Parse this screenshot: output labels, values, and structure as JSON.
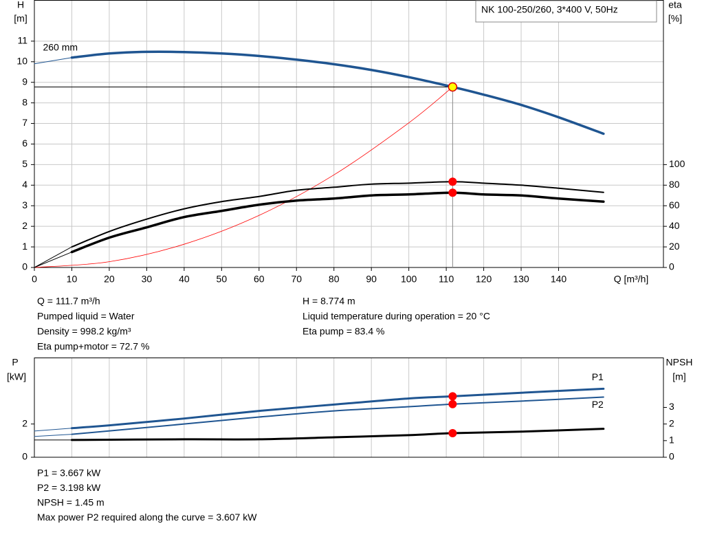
{
  "chart_data": [
    {
      "type": "line",
      "title": "NK 100-250/260, 3*400 V, 50Hz",
      "ylabel": [
        "H",
        "[m]"
      ],
      "y2label": [
        "eta",
        "[%]"
      ],
      "xlabel": "Q [m³/h]",
      "xlim": [
        0,
        168
      ],
      "xticks": [
        0,
        10,
        20,
        30,
        40,
        50,
        60,
        70,
        80,
        90,
        100,
        110,
        120,
        130,
        140
      ],
      "ylim": [
        0,
        13
      ],
      "yticks": [
        0,
        1,
        2,
        3,
        4,
        5,
        6,
        7,
        8,
        9,
        10,
        11
      ],
      "y2lim": [
        0,
        260
      ],
      "y2ticks": [
        0,
        20,
        40,
        60,
        80,
        100
      ],
      "grid": true,
      "series": [
        {
          "color": "#1f5591",
          "line_width": 1,
          "x": [
            0,
            10
          ],
          "values": [
            9.9,
            10.2
          ]
        },
        {
          "name": "260 mm",
          "label_at": "start",
          "color": "#1f5591",
          "line_width": 3.5,
          "x": [
            10,
            20,
            30,
            40,
            50,
            60,
            70,
            80,
            90,
            100,
            111.7,
            120,
            130,
            140,
            152
          ],
          "values": [
            10.2,
            10.4,
            10.48,
            10.47,
            10.4,
            10.28,
            10.1,
            9.88,
            9.6,
            9.25,
            8.774,
            8.4,
            7.9,
            7.3,
            6.5
          ]
        },
        {
          "color": "#ff0000",
          "line_width": 0.8,
          "x": [
            0,
            20,
            40,
            60,
            80,
            100,
            111.7
          ],
          "values": [
            0,
            0.28,
            1.13,
            2.53,
            4.5,
            7.03,
            8.774
          ]
        },
        {
          "color": "#000000",
          "line_width": 1,
          "axis": "y2",
          "x": [
            0,
            10
          ],
          "values": [
            0,
            20
          ]
        },
        {
          "color": "#000000",
          "line_width": 2,
          "axis": "y2",
          "x": [
            10,
            20,
            30,
            40,
            50,
            60,
            70,
            80,
            90,
            100,
            111.7,
            120,
            130,
            140,
            152
          ],
          "values": [
            20,
            35,
            47,
            57,
            64,
            69,
            75,
            78,
            81,
            82,
            83.4,
            82,
            80,
            77,
            73
          ]
        },
        {
          "color": "#000000",
          "line_width": 1,
          "axis": "y2",
          "x": [
            0,
            10
          ],
          "values": [
            0,
            15
          ]
        },
        {
          "color": "#000000",
          "line_width": 3.5,
          "axis": "y2",
          "x": [
            10,
            20,
            30,
            40,
            50,
            60,
            70,
            80,
            90,
            100,
            111.7,
            120,
            130,
            140,
            152
          ],
          "values": [
            15,
            29,
            39,
            49,
            55,
            61,
            65,
            67,
            70,
            71,
            72.7,
            71,
            70,
            67,
            64
          ]
        }
      ],
      "points": [
        {
          "x": 111.7,
          "y": 8.774,
          "color": "#ffff00",
          "crosshair": true
        },
        {
          "x": 111.7,
          "y": 83.4,
          "axis": "y2",
          "color": "#ff0000"
        },
        {
          "x": 111.7,
          "y": 72.7,
          "axis": "y2",
          "color": "#ff0000"
        }
      ]
    },
    {
      "type": "line",
      "ylabel": [
        "P",
        "[kW]"
      ],
      "y2label": [
        "NPSH",
        "[m]"
      ],
      "xlim": [
        0,
        168
      ],
      "ylim": [
        0,
        6
      ],
      "yticks": [
        0,
        2
      ],
      "y2lim": [
        0,
        6
      ],
      "y2ticks": [
        0,
        1,
        2,
        3
      ],
      "grid": true,
      "series": [
        {
          "color": "#1f5591",
          "line_width": 1,
          "x": [
            0,
            10
          ],
          "values": [
            1.58,
            1.75
          ]
        },
        {
          "name": "P1",
          "label_at": "end",
          "label_side": "above",
          "color": "#1f5591",
          "line_width": 3,
          "x": [
            10,
            20,
            40,
            60,
            80,
            100,
            111.7,
            130,
            152
          ],
          "values": [
            1.75,
            1.92,
            2.33,
            2.79,
            3.17,
            3.54,
            3.667,
            3.88,
            4.12
          ]
        },
        {
          "color": "#1f5591",
          "line_width": 1,
          "x": [
            0,
            10
          ],
          "values": [
            1.25,
            1.38
          ]
        },
        {
          "name": "P2",
          "label_at": "end",
          "label_side": "below",
          "color": "#1f5591",
          "line_width": 2,
          "x": [
            10,
            40,
            60,
            80,
            100,
            111.7,
            130,
            152
          ],
          "values": [
            1.38,
            2.0,
            2.42,
            2.79,
            3.04,
            3.198,
            3.38,
            3.62
          ]
        },
        {
          "color": "#000000",
          "line_width": 1,
          "axis": "y2",
          "x": [
            0,
            10
          ],
          "values": [
            1.04,
            1.04
          ]
        },
        {
          "color": "#000000",
          "line_width": 3,
          "axis": "y2",
          "x": [
            10,
            40,
            60,
            80,
            100,
            111.7,
            130,
            152
          ],
          "values": [
            1.04,
            1.08,
            1.08,
            1.2,
            1.33,
            1.45,
            1.54,
            1.71
          ]
        }
      ],
      "points": [
        {
          "x": 111.7,
          "y": 3.667,
          "color": "#ff0000"
        },
        {
          "x": 111.7,
          "y": 3.198,
          "color": "#ff0000"
        },
        {
          "x": 111.7,
          "y": 1.45,
          "axis": "y2",
          "color": "#ff0000"
        }
      ]
    }
  ],
  "readout_top": {
    "left": [
      "Q = 111.7 m³/h",
      "Pumped liquid = Water",
      "Density = 998.2 kg/m³",
      "Eta pump+motor = 72.7 %"
    ],
    "right": [
      "H = 8.774 m",
      "Liquid temperature during operation = 20 °C",
      "Eta pump = 83.4 %"
    ]
  },
  "readout_bottom": [
    "P1 = 3.667 kW",
    "P2 = 3.198 kW",
    "NPSH = 1.45 m",
    "Max power P2 required along the curve = 3.607 kW"
  ]
}
